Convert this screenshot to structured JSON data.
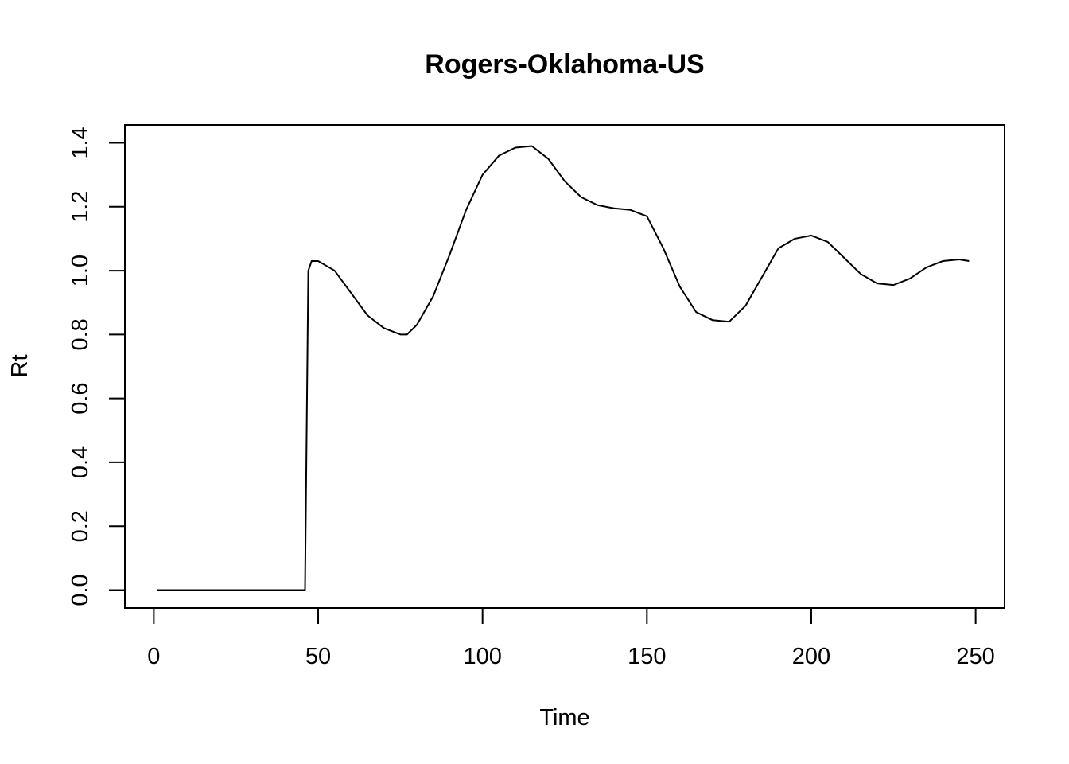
{
  "chart_data": {
    "type": "line",
    "title": "Rogers-Oklahoma-US",
    "xlabel": "Time",
    "ylabel": "Rt",
    "xlim": [
      -8.8,
      258.8
    ],
    "ylim": [
      -0.056,
      1.456
    ],
    "xticks": [
      0,
      50,
      100,
      150,
      200,
      250
    ],
    "yticks": [
      0.0,
      0.2,
      0.4,
      0.6,
      0.8,
      1.0,
      1.2,
      1.4
    ],
    "xtick_labels": [
      "0",
      "50",
      "100",
      "150",
      "200",
      "250"
    ],
    "ytick_labels": [
      "0.0",
      "0.2",
      "0.4",
      "0.6",
      "0.8",
      "1.0",
      "1.2",
      "1.4"
    ],
    "grid": false,
    "legend": "none",
    "line_color": "#000000",
    "series": [
      {
        "x": [
          1,
          10,
          20,
          30,
          40,
          46,
          46.5,
          47,
          48,
          50,
          55,
          60,
          65,
          70,
          75,
          77,
          80,
          85,
          90,
          95,
          100,
          105,
          110,
          115,
          120,
          125,
          130,
          135,
          140,
          145,
          150,
          155,
          160,
          165,
          170,
          175,
          180,
          185,
          190,
          195,
          200,
          205,
          210,
          215,
          220,
          225,
          230,
          235,
          240,
          245,
          248
        ],
        "y": [
          0.0,
          0.0,
          0.0,
          0.0,
          0.0,
          0.0,
          0.5,
          1.0,
          1.03,
          1.03,
          1.0,
          0.93,
          0.86,
          0.82,
          0.8,
          0.8,
          0.83,
          0.92,
          1.05,
          1.19,
          1.3,
          1.36,
          1.385,
          1.39,
          1.35,
          1.28,
          1.23,
          1.205,
          1.195,
          1.19,
          1.17,
          1.07,
          0.95,
          0.87,
          0.845,
          0.84,
          0.89,
          0.98,
          1.07,
          1.1,
          1.11,
          1.09,
          1.04,
          0.99,
          0.96,
          0.955,
          0.975,
          1.01,
          1.03,
          1.035,
          1.03
        ]
      }
    ]
  }
}
